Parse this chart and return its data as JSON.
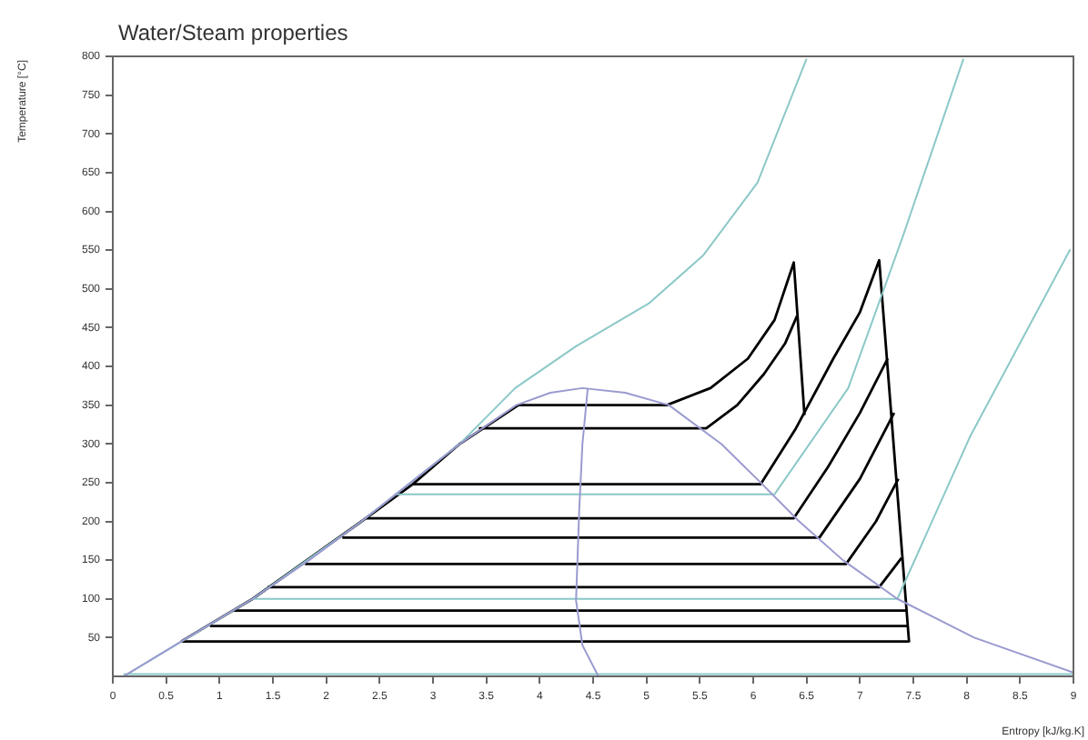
{
  "chart_data": {
    "type": "line",
    "title": "Water/Steam properties",
    "xlabel": "Entropy [kJ/kg.K]",
    "ylabel": "Temperature [°C]",
    "xlim": [
      0,
      9
    ],
    "xticks": [
      0,
      0.5,
      1,
      1.5,
      2,
      2.5,
      3,
      3.5,
      4,
      4.5,
      5,
      5.5,
      6,
      6.5,
      7,
      7.5,
      8,
      8.5,
      9
    ],
    "ylim": [
      0,
      800
    ],
    "yticks": [
      50,
      100,
      150,
      200,
      250,
      300,
      350,
      400,
      450,
      500,
      550,
      600,
      650,
      700,
      750,
      800
    ],
    "grid": false,
    "legend": false,
    "marker": "none",
    "line_style": "solid",
    "series": [
      {
        "color": "#9a9ad0",
        "x": [
          0.1,
          0.7,
          1.31,
          1.84,
          2.33,
          2.79,
          3.25,
          3.78,
          4.1,
          4.4,
          4.8,
          5.21,
          5.7,
          6.07,
          6.43,
          6.84,
          7.35,
          8.07,
          9.0
        ],
        "values": [
          0,
          50,
          100,
          150,
          200,
          250,
          300,
          350,
          366,
          372,
          366,
          350,
          300,
          250,
          200,
          150,
          100,
          50,
          5
        ]
      },
      {
        "color": "#9a9ad0",
        "x": [
          4.45,
          4.4,
          4.37,
          4.34,
          4.4,
          4.55
        ],
        "values": [
          372,
          300,
          215,
          98,
          40,
          0
        ]
      },
      {
        "color": "#8cc8c8",
        "x": [
          0.1,
          1.31,
          2.33,
          3.25,
          3.77,
          4.34,
          5.02,
          5.53,
          6.04,
          6.5
        ],
        "values": [
          0,
          100,
          200,
          300,
          372,
          426,
          481,
          543,
          637,
          797
        ]
      },
      {
        "color": "#8cc8c8",
        "x": [
          2.64,
          6.2,
          6.89,
          7.4,
          7.97
        ],
        "values": [
          235,
          235,
          372,
          567,
          797
        ]
      },
      {
        "color": "#8cc8c8",
        "x": [
          1.31,
          7.35,
          8.03,
          8.97
        ],
        "values": [
          100,
          100,
          309,
          551
        ]
      },
      {
        "color": "#8cc8c8",
        "x": [
          0.1,
          9.0
        ],
        "values": [
          3,
          3
        ]
      },
      {
        "color": "#000000",
        "x": [
          0.64,
          1.31,
          2.33,
          2.81,
          3.25,
          3.8
        ],
        "values": [
          45,
          100,
          200,
          248,
          300,
          350
        ]
      },
      {
        "color": "#000000",
        "x": [
          3.8,
          5.19,
          5.6,
          5.95,
          6.2,
          6.38,
          6.48
        ],
        "values": [
          350,
          350,
          372,
          410,
          460,
          534,
          337
        ]
      },
      {
        "color": "#000000",
        "x": [
          3.43,
          5.56,
          5.85,
          6.1,
          6.3,
          6.41
        ],
        "values": [
          320,
          320,
          350,
          390,
          430,
          465
        ]
      },
      {
        "color": "#000000",
        "x": [
          2.81,
          6.07,
          6.4,
          6.75,
          7.0,
          7.18,
          7.46
        ],
        "values": [
          248,
          248,
          320,
          410,
          470,
          537,
          44
        ]
      },
      {
        "color": "#000000",
        "x": [
          2.37,
          6.38,
          6.7,
          7.0,
          7.26
        ],
        "values": [
          204,
          204,
          270,
          340,
          410
        ]
      },
      {
        "color": "#000000",
        "x": [
          2.15,
          6.62,
          7.0,
          7.32
        ],
        "values": [
          179,
          179,
          255,
          340
        ]
      },
      {
        "color": "#000000",
        "x": [
          1.8,
          6.87,
          7.15,
          7.36
        ],
        "values": [
          145,
          145,
          200,
          255
        ]
      },
      {
        "color": "#000000",
        "x": [
          1.45,
          7.18,
          7.39
        ],
        "values": [
          115,
          115,
          153
        ]
      },
      {
        "color": "#000000",
        "x": [
          1.13,
          7.43
        ],
        "values": [
          85,
          85
        ]
      },
      {
        "color": "#000000",
        "x": [
          0.91,
          7.44
        ],
        "values": [
          65,
          65
        ]
      },
      {
        "color": "#000000",
        "x": [
          0.64,
          7.46
        ],
        "values": [
          45,
          45
        ]
      }
    ]
  }
}
